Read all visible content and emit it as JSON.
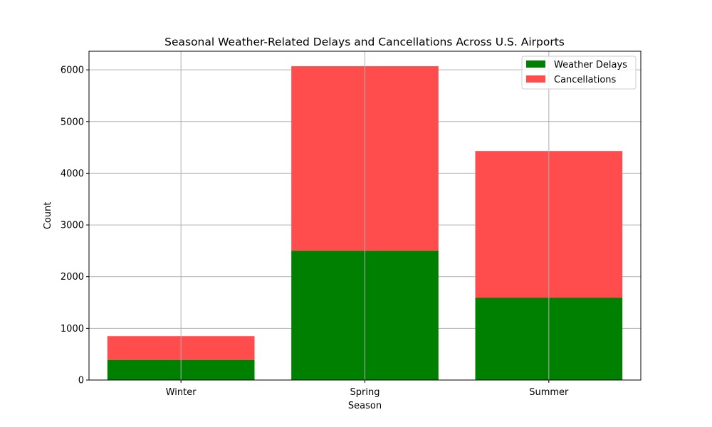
{
  "chart_data": {
    "type": "bar",
    "stacked": true,
    "title": "Seasonal Weather-Related Delays and Cancellations Across U.S. Airports",
    "xlabel": "Season",
    "ylabel": "Count",
    "categories": [
      "Winter",
      "Spring",
      "Summer"
    ],
    "series": [
      {
        "name": "Weather Delays",
        "values": [
          390,
          2500,
          1590
        ],
        "color": "#008000"
      },
      {
        "name": "Cancellations",
        "values": [
          460,
          3570,
          2840
        ],
        "color": "#ff4c4c"
      }
    ],
    "ylim": [
      0,
      6360
    ],
    "yticks": [
      0,
      1000,
      2000,
      3000,
      4000,
      5000,
      6000
    ],
    "grid": true,
    "legend_position": "top-right"
  }
}
